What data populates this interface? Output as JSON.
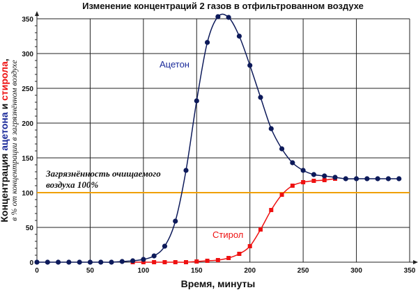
{
  "chart_data": {
    "type": "line",
    "title": "Изменение концентраций 2 газов в отфильтрованном воздухе",
    "xlabel": "Время, минуты",
    "ylabel": {
      "part1": "Концентрация ",
      "acetone_word": "ацетона",
      "and": " и ",
      "styrene_word": "стирола",
      "comma": ",",
      "line2": "в % от концентрации в загрязнённом воздухе"
    },
    "xlim": [
      0,
      350
    ],
    "ylim": [
      0,
      350
    ],
    "xticks": [
      0,
      50,
      100,
      150,
      200,
      250,
      300,
      350
    ],
    "yticks": [
      0,
      50,
      100,
      150,
      200,
      250,
      300,
      350
    ],
    "grid": true,
    "reference_line": {
      "y": 100,
      "color": "#f0a000",
      "label_line1": "Загрязнённость очищаемого",
      "label_line2": "воздуха 100%"
    },
    "series": [
      {
        "name": "Ацетон",
        "color": "#0d1a5a",
        "label_color": "#1a2a9a",
        "marker": "circle",
        "x": [
          0,
          10,
          20,
          30,
          40,
          50,
          60,
          70,
          80,
          90,
          100,
          110,
          120,
          130,
          140,
          150,
          160,
          170,
          180,
          190,
          200,
          210,
          220,
          230,
          240,
          250,
          260,
          270,
          280,
          290,
          300,
          310,
          320,
          330,
          340
        ],
        "values": [
          0,
          0,
          0,
          0,
          0,
          0,
          0,
          0,
          1,
          2,
          4,
          9,
          23,
          59,
          132,
          232,
          316,
          353,
          352,
          325,
          283,
          237,
          192,
          163,
          143,
          132,
          126,
          124,
          122,
          120,
          120,
          120,
          120,
          120,
          120
        ]
      },
      {
        "name": "Стирол",
        "color": "#ee1111",
        "label_color": "#ee1111",
        "marker": "square",
        "x": [
          90,
          100,
          110,
          120,
          130,
          140,
          150,
          160,
          170,
          180,
          190,
          200,
          210,
          220,
          230,
          240,
          250,
          260,
          270,
          280
        ],
        "values": [
          0,
          0,
          0,
          0,
          0,
          0,
          1,
          2,
          3,
          6,
          12,
          23,
          47,
          75,
          97,
          110,
          115,
          117,
          118,
          120
        ]
      }
    ]
  }
}
